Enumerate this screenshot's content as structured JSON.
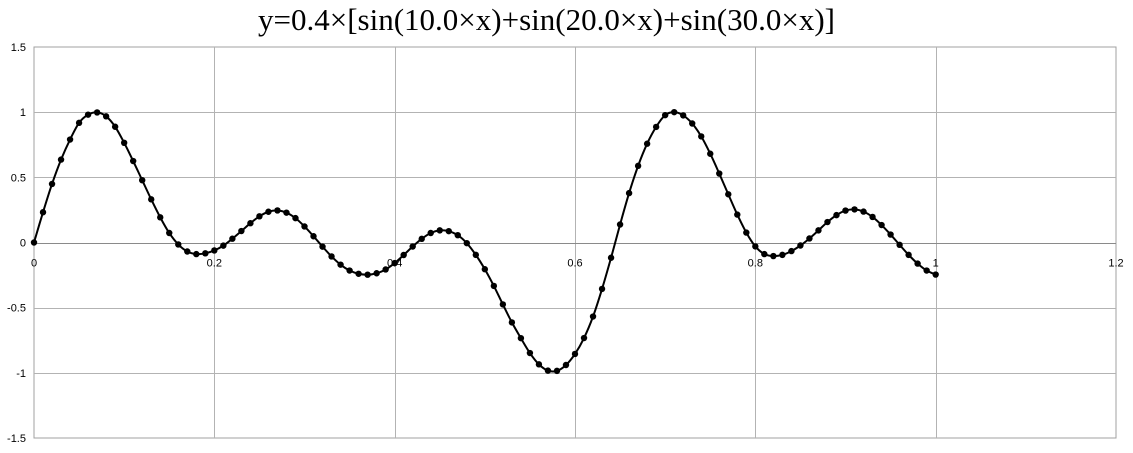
{
  "chart_data": {
    "type": "scatter",
    "title": "y=0.4×[sin(10.0×x)+sin(20.0×x)+sin(30.0×x)]",
    "xlabel": "",
    "ylabel": "",
    "xlim": [
      0,
      1.2
    ],
    "ylim": [
      -1.5,
      1.5
    ],
    "xticks": [
      "0",
      "0.2",
      "0.4",
      "0.6",
      "0.8",
      "1",
      "1.2"
    ],
    "yticks": [
      "1.5",
      "1",
      "0.5",
      "0",
      "-0.5",
      "-1",
      "-1.5"
    ],
    "grid": true,
    "legend": "none",
    "series": [
      {
        "marker": "circle",
        "line": "smooth",
        "color": "#000000",
        "x_start": 0,
        "x_step": 0.01,
        "y": [
          0,
          0.232,
          0.449,
          0.636,
          0.79,
          0.918,
          0.981,
          0.998,
          0.968,
          0.888,
          0.765,
          0.625,
          0.478,
          0.331,
          0.193,
          0.073,
          -0.015,
          -0.069,
          -0.089,
          -0.083,
          -0.061,
          -0.024,
          0.029,
          0.088,
          0.148,
          0.201,
          0.236,
          0.246,
          0.229,
          0.187,
          0.123,
          0.048,
          -0.032,
          -0.107,
          -0.17,
          -0.215,
          -0.24,
          -0.247,
          -0.236,
          -0.207,
          -0.158,
          -0.096,
          -0.031,
          0.028,
          0.073,
          0.093,
          0.087,
          0.056,
          -0.005,
          -0.095,
          -0.205,
          -0.333,
          -0.475,
          -0.613,
          -0.734,
          -0.848,
          -0.935,
          -0.983,
          -0.985,
          -0.94,
          -0.855,
          -0.733,
          -0.568,
          -0.356,
          -0.117,
          0.138,
          0.379,
          0.588,
          0.758,
          0.887,
          0.977,
          1.0,
          0.975,
          0.913,
          0.814,
          0.681,
          0.529,
          0.37,
          0.214,
          0.076,
          -0.03,
          -0.089,
          -0.104,
          -0.095,
          -0.066,
          -0.023,
          0.031,
          0.093,
          0.157,
          0.21,
          0.245,
          0.254,
          0.237,
          0.196,
          0.134,
          0.061,
          -0.018,
          -0.095,
          -0.162,
          -0.215,
          -0.246
        ]
      }
    ]
  }
}
